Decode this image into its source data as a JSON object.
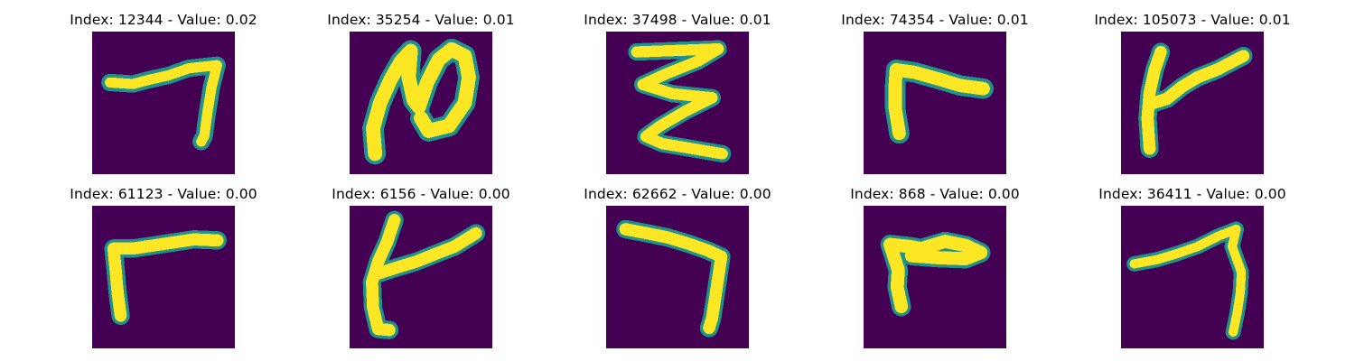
{
  "colors": {
    "background": "#440154",
    "mid": "#21918c",
    "mid_light": "#35b779",
    "stroke": "#fde725"
  },
  "panels": [
    {
      "title": "Index: 12344 - Value: 0.02",
      "index": 12344,
      "value": 0.02
    },
    {
      "title": "Index: 35254 - Value: 0.01",
      "index": 35254,
      "value": 0.01
    },
    {
      "title": "Index: 37498 - Value: 0.01",
      "index": 37498,
      "value": 0.01
    },
    {
      "title": "Index: 74354 - Value: 0.01",
      "index": 74354,
      "value": 0.01
    },
    {
      "title": "Index: 105073 - Value: 0.01",
      "index": 105073,
      "value": 0.01
    },
    {
      "title": "Index: 61123 - Value: 0.00",
      "index": 61123,
      "value": 0.0
    },
    {
      "title": "Index: 6156 - Value: 0.00",
      "index": 6156,
      "value": 0.0
    },
    {
      "title": "Index: 62662 - Value: 0.00",
      "index": 62662,
      "value": 0.0
    },
    {
      "title": "Index: 868 - Value: 0.00",
      "index": 868,
      "value": 0.0
    },
    {
      "title": "Index: 36411 - Value: 0.00",
      "index": 36411,
      "value": 0.0
    }
  ]
}
